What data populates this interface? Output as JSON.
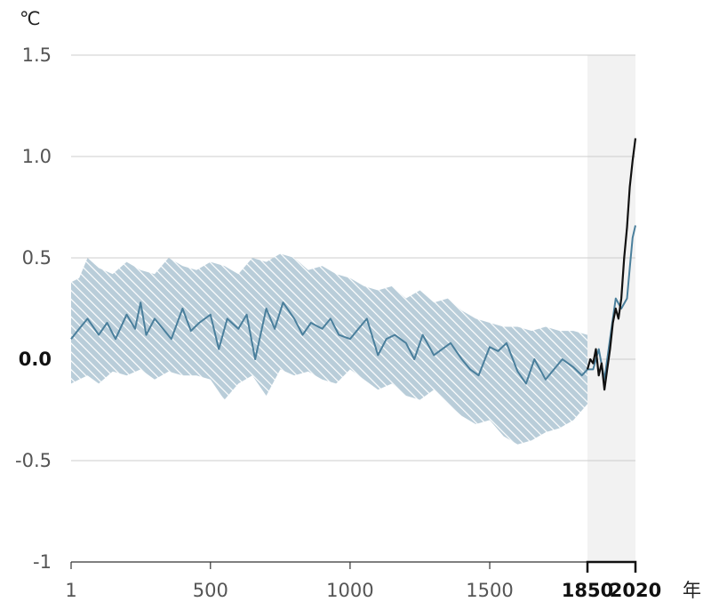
{
  "chart_data": {
    "type": "line",
    "yunit": "℃",
    "xunit": "年",
    "xlim": [
      1,
      2020
    ],
    "ylim": [
      -1,
      1.5
    ],
    "grid": "horizontal",
    "y_ticks": [
      {
        "value": 1.5,
        "label": "1.5",
        "bold": false
      },
      {
        "value": 1.0,
        "label": "1.0",
        "bold": false
      },
      {
        "value": 0.5,
        "label": "0.5",
        "bold": false
      },
      {
        "value": 0.0,
        "label": "0.0",
        "bold": true
      },
      {
        "value": -0.5,
        "label": "-0.5",
        "bold": false
      },
      {
        "value": -1,
        "label": "-1",
        "bold": false
      }
    ],
    "x_ticks": [
      {
        "value": 1,
        "label": "1",
        "bold": false
      },
      {
        "value": 500,
        "label": "500",
        "bold": false
      },
      {
        "value": 1000,
        "label": "1000",
        "bold": false
      },
      {
        "value": 1500,
        "label": "1500",
        "bold": false
      },
      {
        "value": 1850,
        "label": "1850",
        "bold": true
      },
      {
        "value": 2020,
        "label": "2020",
        "bold": true
      }
    ],
    "highlight_period": [
      1850,
      2020
    ],
    "colors": {
      "reconstruction": "#4a7f9c",
      "uncertainty": "#b9cdd9",
      "hatch": "#ffffff",
      "observed": "#111111",
      "highlight": "#f2f2f2",
      "grid": "#cccccc"
    },
    "series": [
      {
        "type": "band",
        "x": [
          1,
          30,
          60,
          100,
          150,
          200,
          250,
          300,
          350,
          400,
          450,
          500,
          550,
          600,
          650,
          700,
          750,
          800,
          850,
          900,
          950,
          1000,
          1050,
          1100,
          1150,
          1200,
          1250,
          1300,
          1350,
          1400,
          1450,
          1500,
          1550,
          1600,
          1650,
          1700,
          1750,
          1800,
          1850
        ],
        "lower": [
          -0.12,
          -0.1,
          -0.08,
          -0.12,
          -0.06,
          -0.08,
          -0.05,
          -0.1,
          -0.06,
          -0.08,
          -0.08,
          -0.1,
          -0.2,
          -0.12,
          -0.08,
          -0.18,
          -0.05,
          -0.08,
          -0.06,
          -0.1,
          -0.12,
          -0.05,
          -0.1,
          -0.15,
          -0.12,
          -0.18,
          -0.2,
          -0.15,
          -0.22,
          -0.28,
          -0.32,
          -0.3,
          -0.38,
          -0.42,
          -0.4,
          -0.36,
          -0.34,
          -0.3,
          -0.22
        ],
        "upper": [
          0.38,
          0.4,
          0.5,
          0.45,
          0.42,
          0.48,
          0.44,
          0.42,
          0.5,
          0.46,
          0.44,
          0.48,
          0.46,
          0.42,
          0.5,
          0.48,
          0.52,
          0.5,
          0.44,
          0.46,
          0.42,
          0.4,
          0.36,
          0.34,
          0.36,
          0.3,
          0.34,
          0.28,
          0.3,
          0.24,
          0.2,
          0.18,
          0.16,
          0.16,
          0.14,
          0.16,
          0.14,
          0.14,
          0.12
        ]
      },
      {
        "type": "line",
        "x": [
          1,
          30,
          60,
          100,
          130,
          160,
          200,
          230,
          250,
          270,
          300,
          330,
          360,
          400,
          430,
          460,
          500,
          530,
          560,
          600,
          630,
          660,
          700,
          730,
          760,
          800,
          830,
          860,
          900,
          930,
          960,
          1000,
          1030,
          1060,
          1100,
          1130,
          1160,
          1200,
          1230,
          1260,
          1300,
          1330,
          1360,
          1400,
          1430,
          1460,
          1500,
          1530,
          1560,
          1600,
          1630,
          1660,
          1700,
          1730,
          1760,
          1800,
          1830,
          1850,
          1870,
          1890,
          1910,
          1930,
          1950,
          1970,
          1990,
          2000,
          2010,
          2020
        ],
        "y": [
          0.1,
          0.15,
          0.2,
          0.12,
          0.18,
          0.1,
          0.22,
          0.15,
          0.28,
          0.12,
          0.2,
          0.15,
          0.1,
          0.25,
          0.14,
          0.18,
          0.22,
          0.05,
          0.2,
          0.15,
          0.22,
          0.0,
          0.25,
          0.15,
          0.28,
          0.2,
          0.12,
          0.18,
          0.15,
          0.2,
          0.12,
          0.1,
          0.15,
          0.2,
          0.02,
          0.1,
          0.12,
          0.08,
          0.0,
          0.12,
          0.02,
          0.05,
          0.08,
          0.0,
          -0.05,
          -0.08,
          0.06,
          0.04,
          0.08,
          -0.06,
          -0.12,
          0.0,
          -0.1,
          -0.05,
          0.0,
          -0.04,
          -0.08,
          -0.05,
          -0.05,
          0.05,
          -0.1,
          0.1,
          0.3,
          0.25,
          0.3,
          0.45,
          0.6,
          0.66
        ]
      },
      {
        "type": "line",
        "x": [
          1850,
          1860,
          1870,
          1880,
          1890,
          1900,
          1910,
          1920,
          1930,
          1940,
          1950,
          1960,
          1970,
          1980,
          1990,
          2000,
          2010,
          2020
        ],
        "y": [
          -0.05,
          0.0,
          -0.02,
          0.05,
          -0.08,
          -0.02,
          -0.15,
          -0.05,
          0.05,
          0.18,
          0.25,
          0.2,
          0.3,
          0.5,
          0.65,
          0.85,
          0.98,
          1.09
        ]
      }
    ]
  }
}
